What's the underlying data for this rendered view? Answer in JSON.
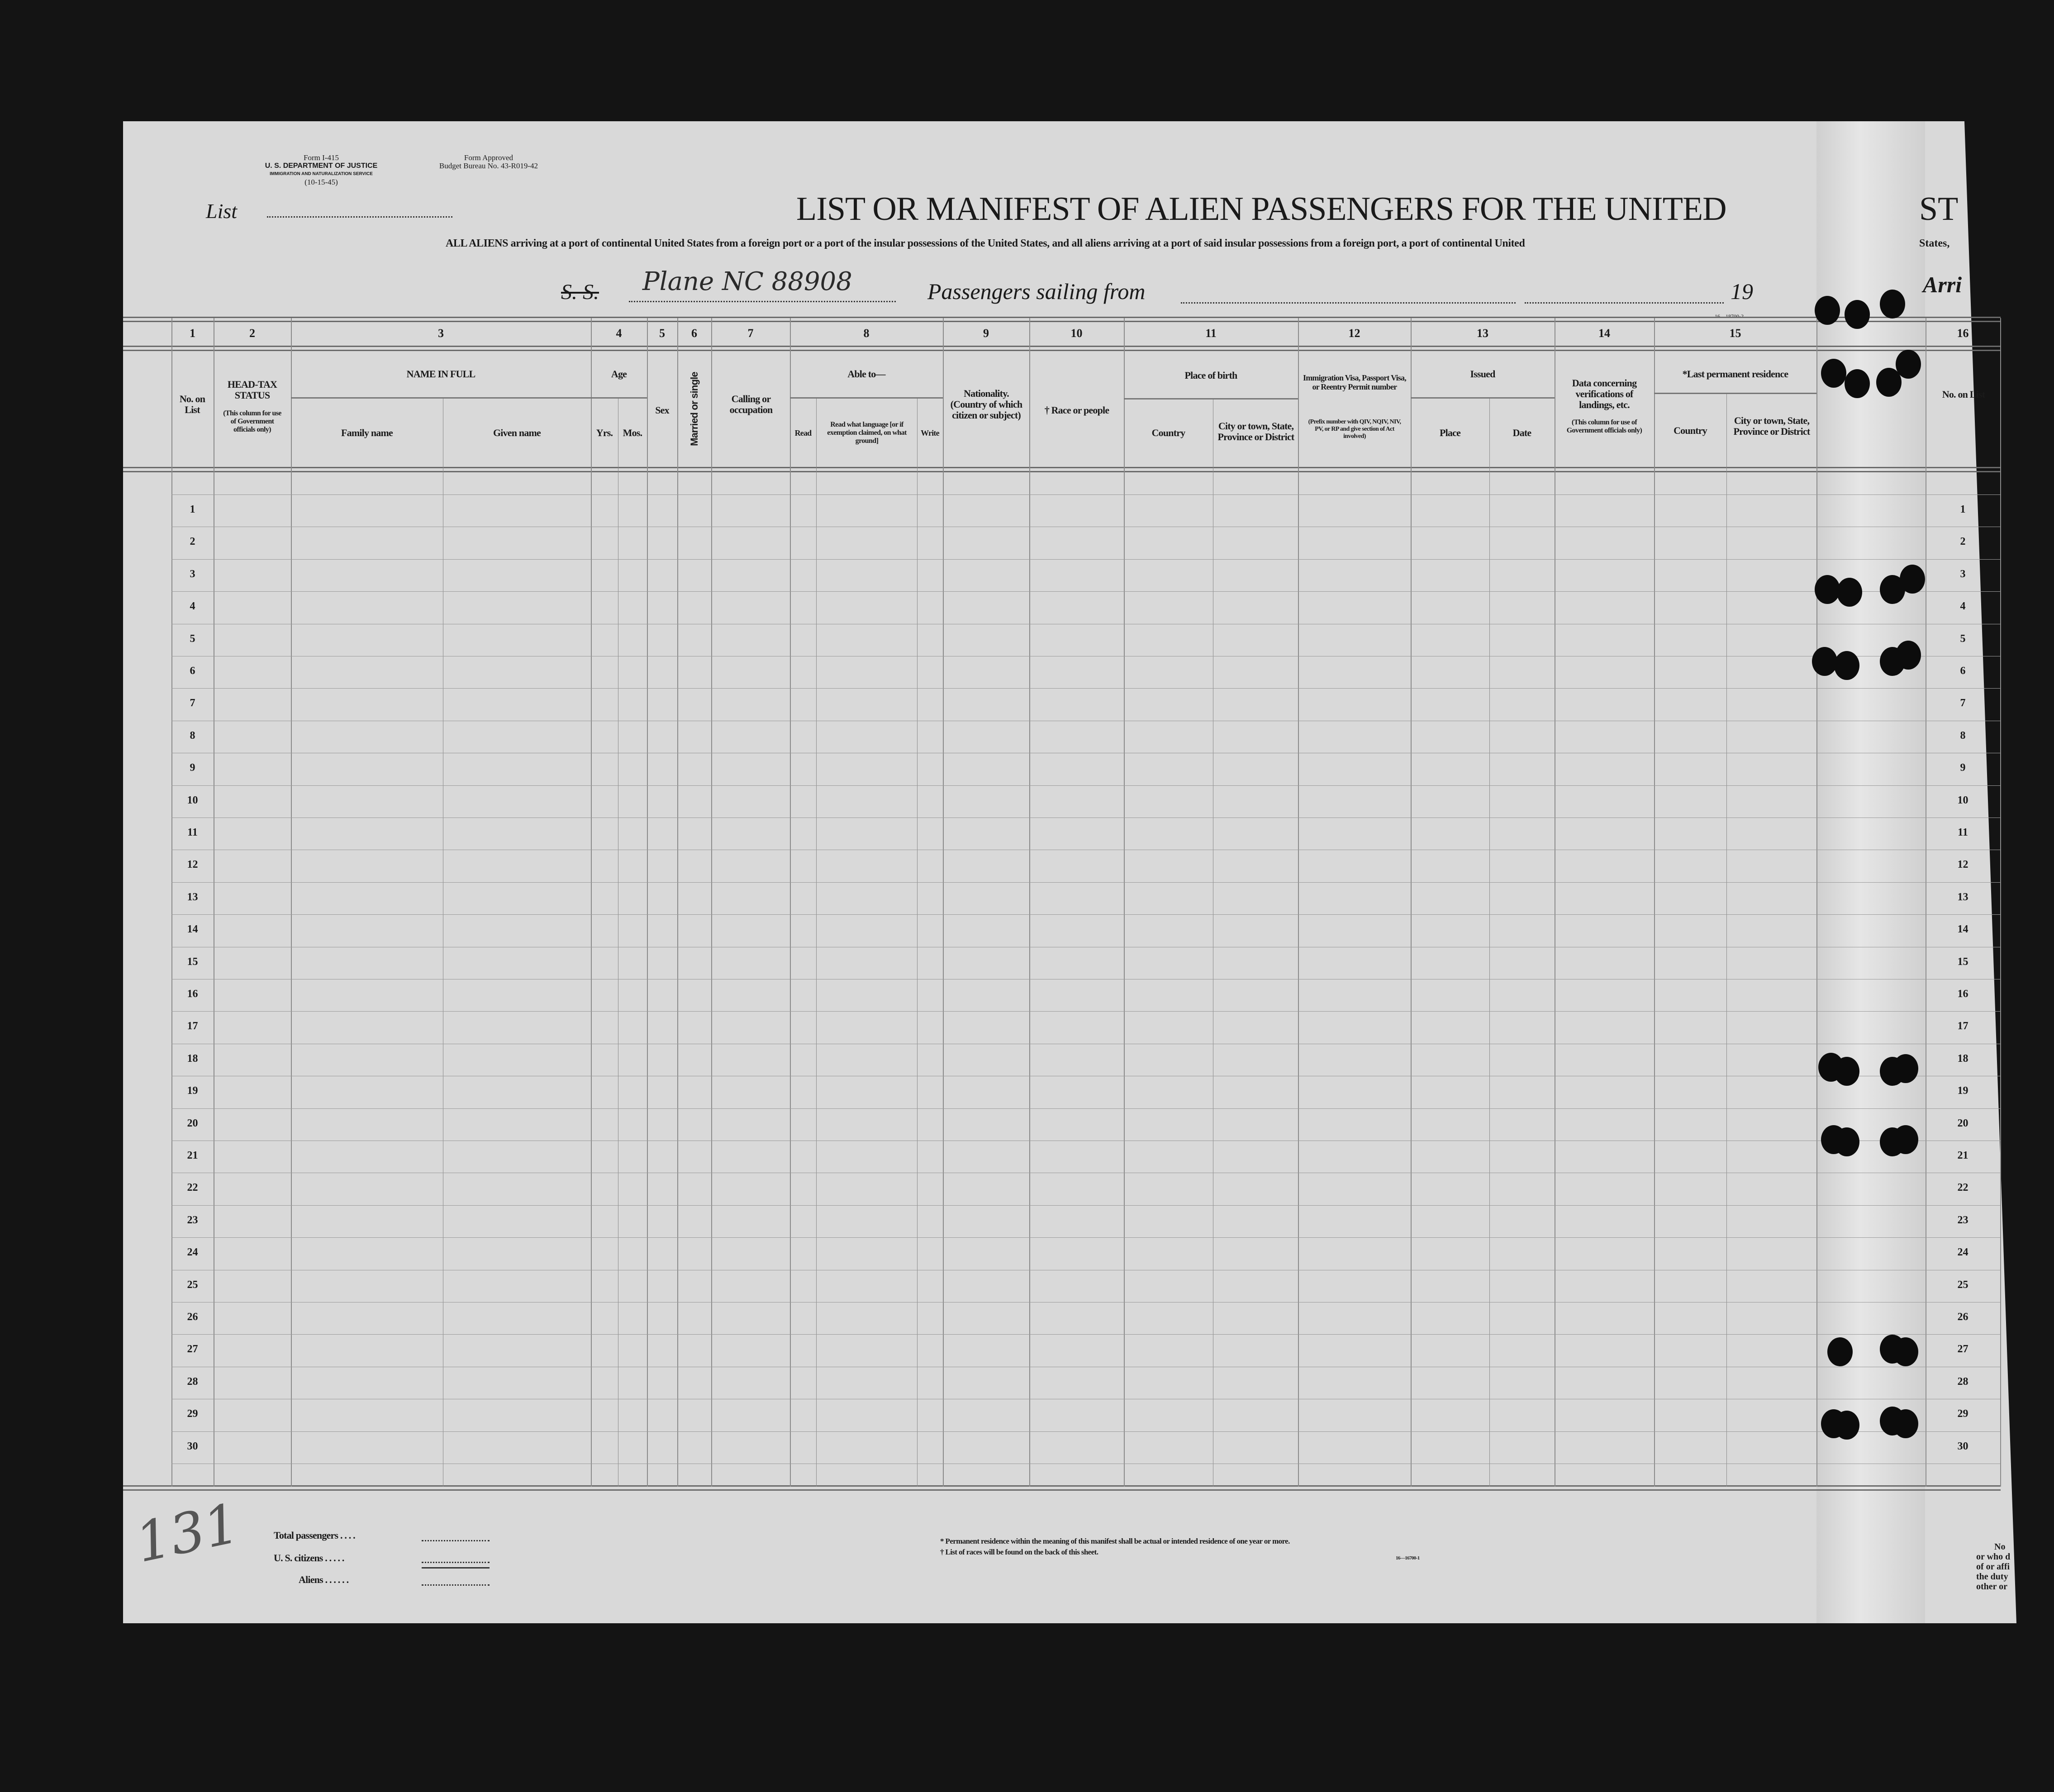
{
  "form_info": {
    "form_number": "Form I-415",
    "department": "U. S. DEPARTMENT OF JUSTICE",
    "service": "IMMIGRATION AND NATURALIZATION SERVICE",
    "form_date": "(10-15-45)",
    "approval": "Form Approved",
    "budget_bureau": "Budget Bureau No. 43-R019-42"
  },
  "list_label": "List",
  "title": "LIST OR MANIFEST OF ALIEN PASSENGERS FOR THE UNITED",
  "title_continued": "ST",
  "subtitle": "ALL ALIENS arriving at a port of continental United States from a foreign port or a port of the insular possessions of the United States, and all aliens arriving at a port of said insular possessions from a foreign port, a port of continental United",
  "subtitle_continued": "States,",
  "vessel_line": {
    "ss_label": "S. S.",
    "vessel_handwritten": "Plane NC 88908",
    "sailing_label": "Passengers sailing from",
    "year_prefix": "19",
    "arriving_label": "Arri"
  },
  "form_code_top": "16—18700-2",
  "columns": {
    "numbers": [
      "1",
      "2",
      "3",
      "4",
      "5",
      "6",
      "7",
      "8",
      "9",
      "10",
      "11",
      "12",
      "13",
      "14",
      "15",
      "16"
    ],
    "no_on_list": "No. on List",
    "head_tax": "HEAD-TAX STATUS",
    "head_tax_note": "(This column for use of Government officials only)",
    "name_in_full": "NAME IN FULL",
    "family_name": "Family name",
    "given_name": "Given name",
    "age": "Age",
    "yrs": "Yrs.",
    "mos": "Mos.",
    "sex": "Sex",
    "married": "Married or single",
    "calling": "Calling or occupation",
    "able_to": "Able to—",
    "read": "Read",
    "read_language": "Read what language [or if exemption claimed, on what ground]",
    "write": "Write",
    "nationality": "Nationality. (Country of which citizen or subject)",
    "race": "† Race or people",
    "place_of_birth": "Place of birth",
    "country": "Country",
    "city": "City or town, State, Province or District",
    "visa": "Immigration Visa, Passport Visa, or Reentry Permit number",
    "visa_note": "(Prefix number with QIV, NQIV, NIV, PV, or RP and give section of Act involved)",
    "issued": "Issued",
    "place": "Place",
    "date": "Date",
    "verification": "Data concerning verifications of landings, etc.",
    "verification_note": "(This column for use of Government officials only)",
    "last_residence": "*Last permanent residence",
    "residence_country": "Country",
    "residence_city": "City or town, State, Province or District"
  },
  "row_numbers": [
    1,
    2,
    3,
    4,
    5,
    6,
    7,
    8,
    9,
    10,
    11,
    12,
    13,
    14,
    15,
    16,
    17,
    18,
    19,
    20,
    21,
    22,
    23,
    24,
    25,
    26,
    27,
    28,
    29,
    30
  ],
  "totals": {
    "total_passengers": "Total passengers . . . .",
    "us_citizens": "U. S. citizens . . . . .",
    "aliens": "Aliens . . . . . ."
  },
  "footnotes": {
    "residence": "* Permanent residence within the meaning of this manifest shall be actual or intended residence of one year or more.",
    "races": "† List of races will be found on the back of this sheet.",
    "form_code": "16—16700-1"
  },
  "right_note": [
    "No",
    "or who d",
    "of or affi",
    "the duty",
    "other or"
  ],
  "margin_note": "131",
  "colors": {
    "paper": "#d9d9d9",
    "background": "#141414",
    "ink": "#1a1a1a",
    "rule": "#777777"
  }
}
